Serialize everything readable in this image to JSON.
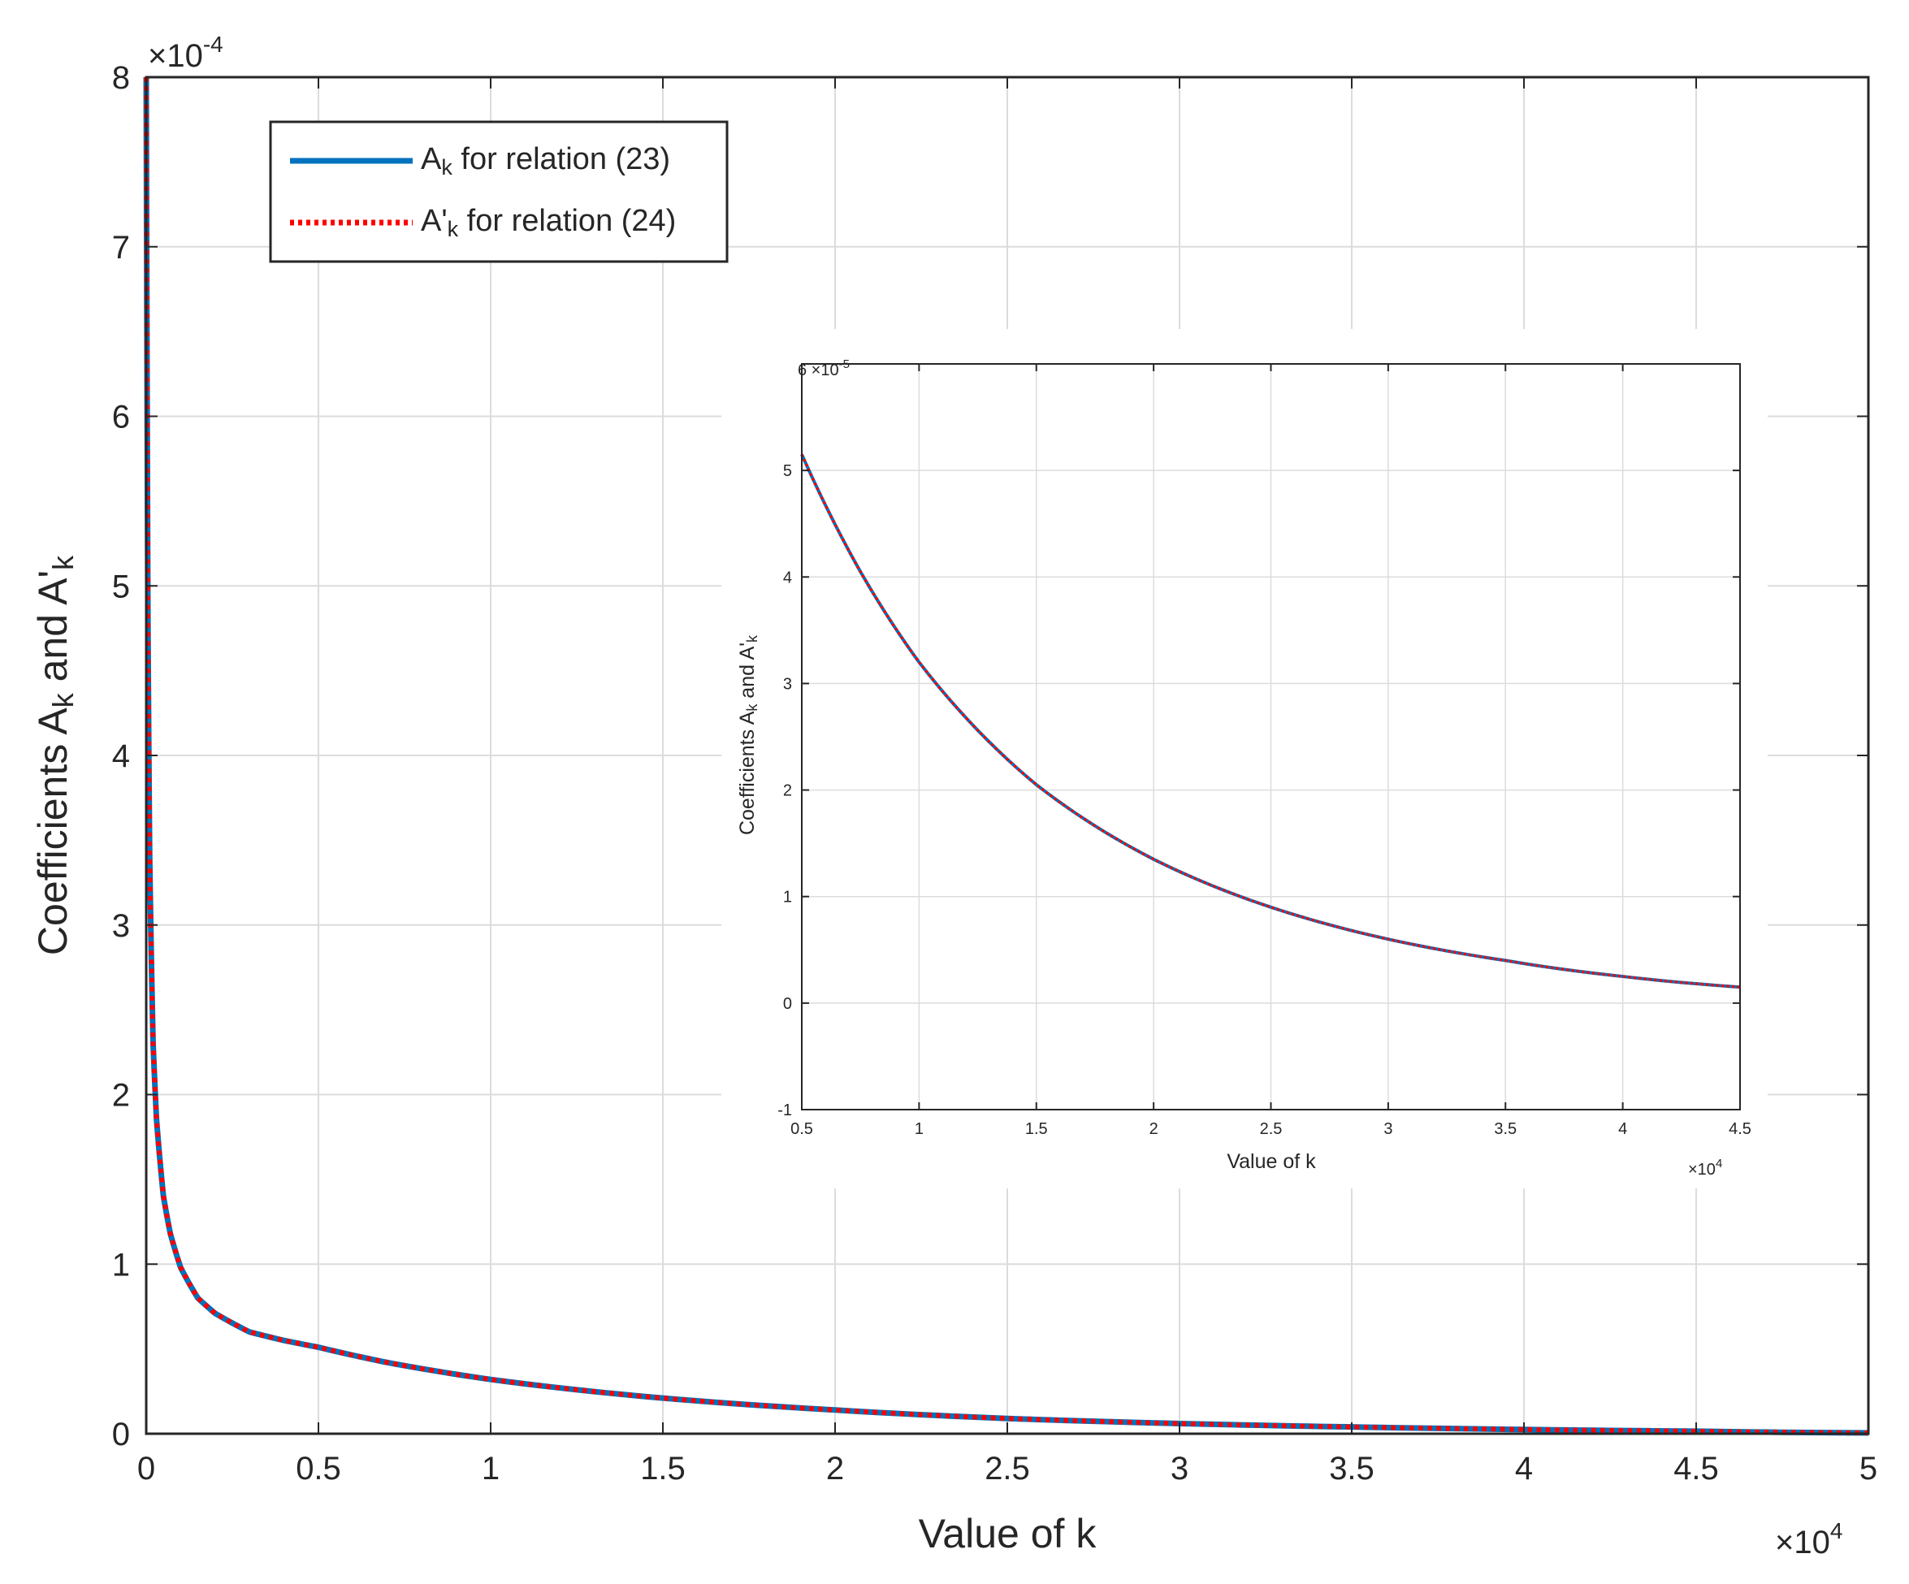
{
  "chart_data": [
    {
      "id": "main",
      "type": "line",
      "xlabel": "Value of k",
      "ylabel_main": "Coefficients A",
      "ylabel_sub1": "k",
      "ylabel_mid": " and A'",
      "ylabel_sub2": "k",
      "x_exponent_base": "×10",
      "x_exponent_power": "4",
      "y_exponent_base": "×10",
      "y_exponent_power": "-4",
      "xlim": [
        0,
        5
      ],
      "ylim": [
        0,
        8
      ],
      "xticks": [
        0,
        0.5,
        1,
        1.5,
        2,
        2.5,
        3,
        3.5,
        4,
        4.5,
        5
      ],
      "xtick_labels": [
        "0",
        "0.5",
        "1",
        "1.5",
        "2",
        "2.5",
        "3",
        "3.5",
        "4",
        "4.5",
        "5"
      ],
      "yticks": [
        0,
        1,
        2,
        3,
        4,
        5,
        6,
        7,
        8
      ],
      "ytick_labels": [
        "0",
        "1",
        "2",
        "3",
        "4",
        "5",
        "6",
        "7",
        "8"
      ],
      "grid": true,
      "legend_position": "top-left",
      "series": [
        {
          "name": "A_k for relation (23)",
          "color": "#0072BD",
          "style": "solid",
          "x": [
            0,
            0.002,
            0.005,
            0.01,
            0.02,
            0.03,
            0.05,
            0.07,
            0.1,
            0.15,
            0.2,
            0.3,
            0.4,
            0.5,
            0.7,
            1.0,
            1.5,
            2.0,
            2.5,
            3.0,
            3.5,
            4.0,
            4.5,
            5.0
          ],
          "y": [
            8.0,
            6.5,
            4.8,
            3.4,
            2.3,
            1.85,
            1.4,
            1.18,
            0.98,
            0.8,
            0.71,
            0.6,
            0.55,
            0.51,
            0.42,
            0.32,
            0.21,
            0.14,
            0.09,
            0.06,
            0.04,
            0.025,
            0.015,
            0.005
          ]
        },
        {
          "name": "A'_k for relation (24)",
          "color": "#FF0000",
          "style": "dotted",
          "x": [
            0,
            0.002,
            0.005,
            0.01,
            0.02,
            0.03,
            0.05,
            0.07,
            0.1,
            0.15,
            0.2,
            0.3,
            0.4,
            0.5,
            0.7,
            1.0,
            1.5,
            2.0,
            2.5,
            3.0,
            3.5,
            4.0,
            4.5,
            5.0
          ],
          "y": [
            8.0,
            6.5,
            4.8,
            3.4,
            2.3,
            1.85,
            1.4,
            1.18,
            0.98,
            0.8,
            0.71,
            0.6,
            0.55,
            0.51,
            0.42,
            0.32,
            0.21,
            0.14,
            0.09,
            0.06,
            0.04,
            0.025,
            0.015,
            0.005
          ]
        }
      ]
    },
    {
      "id": "inset",
      "type": "line",
      "xlabel": "Value of k",
      "ylabel_main": "Coefficients A",
      "ylabel_sub1": "k",
      "ylabel_mid": " and A'",
      "ylabel_sub2": "k",
      "x_exponent_base": "×10",
      "x_exponent_power": "4",
      "y_exponent_base": "6 ×10",
      "y_exponent_power": "-5",
      "xlim": [
        0.5,
        4.5
      ],
      "ylim": [
        -1,
        6
      ],
      "xticks": [
        0.5,
        1,
        1.5,
        2,
        2.5,
        3,
        3.5,
        4,
        4.5
      ],
      "xtick_labels": [
        "0.5",
        "1",
        "1.5",
        "2",
        "2.5",
        "3",
        "3.5",
        "4",
        "4.5"
      ],
      "yticks": [
        -1,
        0,
        1,
        2,
        3,
        4,
        5
      ],
      "ytick_labels": [
        "-1",
        "0",
        "1",
        "2",
        "3",
        "4",
        "5"
      ],
      "grid": true,
      "series": [
        {
          "name": "A_k for relation (23)",
          "color": "#0072BD",
          "style": "solid",
          "x": [
            0.5,
            0.75,
            1.0,
            1.5,
            2.0,
            2.5,
            3.0,
            3.5,
            4.0,
            4.5
          ],
          "y": [
            5.15,
            4.05,
            3.2,
            2.05,
            1.35,
            0.9,
            0.6,
            0.4,
            0.25,
            0.15
          ]
        },
        {
          "name": "A'_k for relation (24)",
          "color": "#FF0000",
          "style": "dotted",
          "x": [
            0.5,
            0.75,
            1.0,
            1.5,
            2.0,
            2.5,
            3.0,
            3.5,
            4.0,
            4.5
          ],
          "y": [
            5.15,
            4.05,
            3.2,
            2.05,
            1.35,
            0.9,
            0.6,
            0.4,
            0.25,
            0.15
          ]
        }
      ]
    }
  ],
  "legend": {
    "entries": [
      {
        "base": "A",
        "sub": "k",
        "rest": " for relation (23)",
        "color": "#0072BD",
        "style": "solid"
      },
      {
        "base": "A'",
        "sub": "k",
        "rest": " for relation (24)",
        "color": "#FF0000",
        "style": "dotted"
      }
    ]
  }
}
